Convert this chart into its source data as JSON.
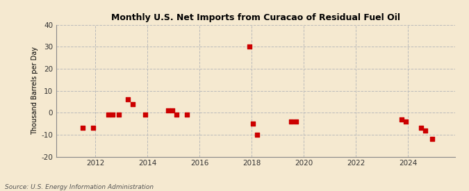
{
  "title": "Monthly U.S. Net Imports from Curacao of Residual Fuel Oil",
  "ylabel": "Thousand Barrels per Day",
  "source": "Source: U.S. Energy Information Administration",
  "xlim": [
    2010.5,
    2025.8
  ],
  "ylim": [
    -20,
    40
  ],
  "yticks": [
    -20,
    -10,
    0,
    10,
    20,
    30,
    40
  ],
  "xticks": [
    2012,
    2014,
    2016,
    2018,
    2020,
    2022,
    2024
  ],
  "background_color": "#f5e9d0",
  "marker_color": "#cc0000",
  "grid_color": "#bbbbbb",
  "data_x": [
    2011.5,
    2011.9,
    2012.5,
    2012.65,
    2012.9,
    2013.25,
    2013.42,
    2013.9,
    2014.8,
    2014.95,
    2015.1,
    2015.5,
    2017.9,
    2018.05,
    2018.2,
    2019.5,
    2019.7,
    2023.75,
    2023.92,
    2024.5,
    2024.65,
    2024.92
  ],
  "data_y": [
    -7,
    -7,
    -1,
    -1,
    -1,
    6,
    4,
    -1,
    1,
    1,
    -1,
    -1,
    30,
    -5,
    -10,
    -4,
    -4,
    -3,
    -4,
    -7,
    -8,
    -12
  ],
  "marker_size": 18
}
